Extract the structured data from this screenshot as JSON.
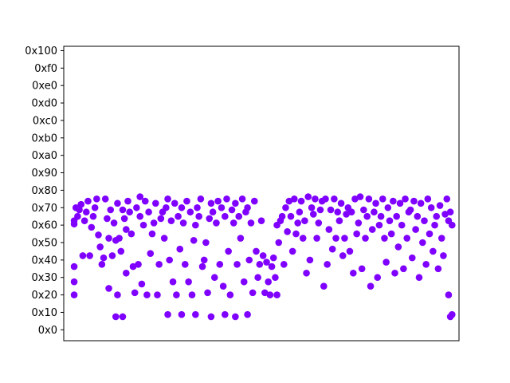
{
  "chart_data": {
    "type": "scatter",
    "title": "",
    "xlabel": "",
    "ylabel": "",
    "x_ticks_visible": false,
    "xlim": [
      -6,
      222
    ],
    "ylim": [
      -10,
      260
    ],
    "yticks": [
      0,
      16,
      32,
      48,
      64,
      80,
      96,
      112,
      128,
      144,
      160,
      176,
      192,
      208,
      224,
      240,
      256
    ],
    "ytick_labels": [
      "0x0",
      "0x10",
      "0x20",
      "0x30",
      "0x40",
      "0x50",
      "0x60",
      "0x70",
      "0x80",
      "0x90",
      "0xa0",
      "0xb0",
      "0xc0",
      "0xd0",
      "0xe0",
      "0xf0",
      "0x100"
    ],
    "grid": false,
    "legend": null,
    "marker_color": "#7f00ff",
    "series": [
      {
        "points": [
          [
            0,
            32
          ],
          [
            0,
            44
          ],
          [
            0,
            58
          ],
          [
            0,
            97
          ],
          [
            0,
            100
          ],
          [
            1,
            112
          ],
          [
            2,
            104
          ],
          [
            3,
            110
          ],
          [
            4,
            115
          ],
          [
            5,
            68
          ],
          [
            6,
            100
          ],
          [
            7,
            108
          ],
          [
            8,
            118
          ],
          [
            9,
            68
          ],
          [
            10,
            94
          ],
          [
            11,
            104
          ],
          [
            12,
            112
          ],
          [
            13,
            120
          ],
          [
            14,
            87
          ],
          [
            15,
            76
          ],
          [
            16,
            60
          ],
          [
            17,
            66
          ],
          [
            18,
            120
          ],
          [
            19,
            102
          ],
          [
            20,
            38
          ],
          [
            20,
            84
          ],
          [
            21,
            110
          ],
          [
            22,
            68
          ],
          [
            23,
            98
          ],
          [
            24,
            12
          ],
          [
            24,
            82
          ],
          [
            25,
            32
          ],
          [
            25,
            116
          ],
          [
            26,
            84
          ],
          [
            27,
            72
          ],
          [
            28,
            12
          ],
          [
            28,
            110
          ],
          [
            29,
            102
          ],
          [
            30,
            92
          ],
          [
            30,
            52
          ],
          [
            31,
            118
          ],
          [
            32,
            108
          ],
          [
            33,
            88
          ],
          [
            34,
            58
          ],
          [
            35,
            34
          ],
          [
            36,
            112
          ],
          [
            37,
            60
          ],
          [
            38,
            104
          ],
          [
            38,
            122
          ],
          [
            39,
            42
          ],
          [
            40,
            96
          ],
          [
            41,
            118
          ],
          [
            42,
            32
          ],
          [
            43,
            108
          ],
          [
            44,
            70
          ],
          [
            45,
            88
          ],
          [
            46,
            98
          ],
          [
            47,
            116
          ],
          [
            48,
            32
          ],
          [
            49,
            60
          ],
          [
            50,
            102
          ],
          [
            51,
            108
          ],
          [
            52,
            84
          ],
          [
            53,
            112
          ],
          [
            54,
            14
          ],
          [
            54,
            120
          ],
          [
            55,
            64
          ],
          [
            56,
            100
          ],
          [
            57,
            44
          ],
          [
            58,
            116
          ],
          [
            59,
            32
          ],
          [
            60,
            104
          ],
          [
            61,
            74
          ],
          [
            62,
            14
          ],
          [
            62,
            112
          ],
          [
            63,
            98
          ],
          [
            64,
            60
          ],
          [
            65,
            118
          ],
          [
            66,
            44
          ],
          [
            67,
            108
          ],
          [
            68,
            32
          ],
          [
            69,
            82
          ],
          [
            70,
            14
          ],
          [
            70,
            96
          ],
          [
            71,
            112
          ],
          [
            72,
            104
          ],
          [
            73,
            120
          ],
          [
            74,
            58
          ],
          [
            75,
            64
          ],
          [
            76,
            80
          ],
          [
            77,
            34
          ],
          [
            78,
            102
          ],
          [
            79,
            12
          ],
          [
            79,
            116
          ],
          [
            80,
            108
          ],
          [
            81,
            48
          ],
          [
            82,
            98
          ],
          [
            83,
            118
          ],
          [
            84,
            60
          ],
          [
            85,
            112
          ],
          [
            86,
            40
          ],
          [
            87,
            14
          ],
          [
            87,
            104
          ],
          [
            88,
            120
          ],
          [
            89,
            72
          ],
          [
            90,
            32
          ],
          [
            91,
            110
          ],
          [
            92,
            98
          ],
          [
            93,
            12
          ],
          [
            93,
            116
          ],
          [
            94,
            60
          ],
          [
            95,
            104
          ],
          [
            96,
            84
          ],
          [
            97,
            120
          ],
          [
            98,
            44
          ],
          [
            99,
            108
          ],
          [
            100,
            14
          ],
          [
            100,
            112
          ],
          [
            101,
            64
          ],
          [
            102,
            98
          ],
          [
            103,
            34
          ],
          [
            104,
            118
          ],
          [
            105,
            72
          ],
          [
            106,
            48
          ],
          [
            107,
            60
          ],
          [
            108,
            100
          ],
          [
            109,
            68
          ],
          [
            110,
            34
          ],
          [
            111,
            62
          ],
          [
            112,
            44
          ],
          [
            113,
            32
          ],
          [
            114,
            58
          ],
          [
            115,
            66
          ],
          [
            116,
            48
          ],
          [
            117,
            32
          ],
          [
            117,
            96
          ],
          [
            118,
            80
          ],
          [
            119,
            100
          ],
          [
            120,
            104
          ],
          [
            121,
            60
          ],
          [
            122,
            112
          ],
          [
            123,
            90
          ],
          [
            124,
            118
          ],
          [
            125,
            104
          ],
          [
            126,
            72
          ],
          [
            127,
            120
          ],
          [
            128,
            88
          ],
          [
            129,
            98
          ],
          [
            130,
            108
          ],
          [
            131,
            118
          ],
          [
            132,
            84
          ],
          [
            133,
            100
          ],
          [
            134,
            52
          ],
          [
            135,
            122
          ],
          [
            136,
            64
          ],
          [
            137,
            112
          ],
          [
            138,
            106
          ],
          [
            139,
            120
          ],
          [
            140,
            84
          ],
          [
            141,
            98
          ],
          [
            142,
            110
          ],
          [
            143,
            118
          ],
          [
            144,
            40
          ],
          [
            145,
            120
          ],
          [
            146,
            60
          ],
          [
            147,
            92
          ],
          [
            148,
            110
          ],
          [
            149,
            74
          ],
          [
            150,
            120
          ],
          [
            151,
            84
          ],
          [
            152,
            108
          ],
          [
            153,
            100
          ],
          [
            154,
            116
          ],
          [
            155,
            68
          ],
          [
            156,
            84
          ],
          [
            157,
            106
          ],
          [
            158,
            112
          ],
          [
            159,
            72
          ],
          [
            160,
            108
          ],
          [
            161,
            52
          ],
          [
            162,
            120
          ],
          [
            163,
            88
          ],
          [
            164,
            98
          ],
          [
            165,
            122
          ],
          [
            166,
            56
          ],
          [
            167,
            110
          ],
          [
            168,
            84
          ],
          [
            169,
            104
          ],
          [
            170,
            120
          ],
          [
            171,
            40
          ],
          [
            172,
            92
          ],
          [
            173,
            108
          ],
          [
            174,
            116
          ],
          [
            175,
            48
          ],
          [
            176,
            96
          ],
          [
            177,
            104
          ],
          [
            178,
            120
          ],
          [
            179,
            84
          ],
          [
            180,
            62
          ],
          [
            181,
            112
          ],
          [
            182,
            100
          ],
          [
            183,
            88
          ],
          [
            184,
            118
          ],
          [
            185,
            52
          ],
          [
            186,
            104
          ],
          [
            187,
            76
          ],
          [
            188,
            116
          ],
          [
            189,
            96
          ],
          [
            190,
            56
          ],
          [
            191,
            120
          ],
          [
            192,
            84
          ],
          [
            193,
            108
          ],
          [
            194,
            110
          ],
          [
            195,
            66
          ],
          [
            196,
            118
          ],
          [
            197,
            92
          ],
          [
            198,
            104
          ],
          [
            199,
            48
          ],
          [
            200,
            116
          ],
          [
            201,
            80
          ],
          [
            202,
            100
          ],
          [
            203,
            60
          ],
          [
            204,
            120
          ],
          [
            205,
            88
          ],
          [
            206,
            112
          ],
          [
            207,
            72
          ],
          [
            208,
            96
          ],
          [
            209,
            104
          ],
          [
            210,
            56
          ],
          [
            211,
            114
          ],
          [
            212,
            84
          ],
          [
            213,
            68
          ],
          [
            214,
            106
          ],
          [
            215,
            120
          ],
          [
            216,
            32
          ],
          [
            216,
            100
          ],
          [
            217,
            12
          ],
          [
            217,
            108
          ],
          [
            218,
            14
          ],
          [
            218,
            96
          ]
        ]
      }
    ]
  }
}
